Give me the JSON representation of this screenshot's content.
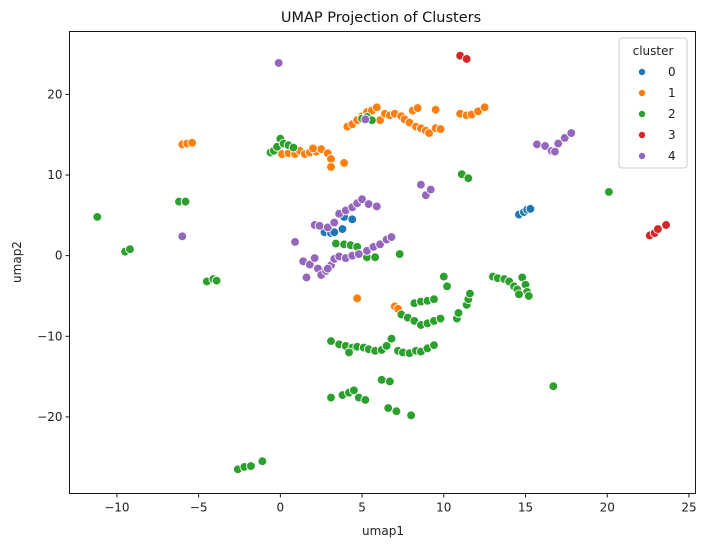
{
  "chart_data": {
    "type": "scatter",
    "title": "UMAP Projection of Clusters",
    "xlabel": "umap1",
    "ylabel": "umap2",
    "xlim": [
      -12.9,
      25.4
    ],
    "ylim": [
      -29.5,
      27.8
    ],
    "x_ticks": [
      -10,
      -5,
      0,
      5,
      10,
      15,
      20,
      25
    ],
    "y_ticks": [
      -20,
      -10,
      0,
      10,
      20
    ],
    "grid": false,
    "legend": {
      "title": "cluster",
      "placement": "top-right"
    },
    "series": [
      {
        "name": "0",
        "color": "#1f77b4",
        "points": [
          [
            2.7,
            2.9
          ],
          [
            3.1,
            2.8
          ],
          [
            3.3,
            2.9
          ],
          [
            3.8,
            3.3
          ],
          [
            3.9,
            4.8
          ],
          [
            4.4,
            4.5
          ],
          [
            14.6,
            5.1
          ],
          [
            14.9,
            5.4
          ],
          [
            15.1,
            5.7
          ],
          [
            15.3,
            5.8
          ],
          [
            8.3,
            -11.8
          ],
          [
            8.9,
            -11.6
          ]
        ]
      },
      {
        "name": "1",
        "color": "#ff7f0e",
        "points": [
          [
            -6.0,
            13.8
          ],
          [
            -5.7,
            13.9
          ],
          [
            -5.4,
            14.0
          ],
          [
            0.1,
            12.6
          ],
          [
            0.5,
            12.7
          ],
          [
            0.9,
            12.6
          ],
          [
            1.2,
            13.0
          ],
          [
            1.5,
            12.6
          ],
          [
            1.8,
            12.8
          ],
          [
            2.2,
            12.9
          ],
          [
            2.5,
            13.2
          ],
          [
            2.9,
            12.7
          ],
          [
            3.1,
            12.0
          ],
          [
            3.1,
            11.0
          ],
          [
            3.9,
            11.5
          ],
          [
            2.0,
            13.3
          ],
          [
            4.1,
            16.0
          ],
          [
            4.4,
            16.3
          ],
          [
            4.7,
            16.8
          ],
          [
            5.0,
            17.3
          ],
          [
            5.3,
            17.8
          ],
          [
            5.6,
            18.0
          ],
          [
            5.9,
            18.4
          ],
          [
            6.1,
            16.8
          ],
          [
            6.4,
            17.6
          ],
          [
            6.7,
            17.4
          ],
          [
            7.0,
            17.6
          ],
          [
            7.4,
            17.3
          ],
          [
            7.6,
            16.9
          ],
          [
            7.9,
            16.5
          ],
          [
            8.3,
            16.0
          ],
          [
            8.6,
            15.8
          ],
          [
            8.9,
            15.5
          ],
          [
            9.1,
            15.2
          ],
          [
            9.5,
            15.8
          ],
          [
            9.8,
            15.7
          ],
          [
            8.1,
            18.0
          ],
          [
            8.4,
            18.3
          ],
          [
            9.5,
            18.1
          ],
          [
            11.0,
            17.6
          ],
          [
            11.4,
            17.4
          ],
          [
            11.7,
            17.5
          ],
          [
            12.1,
            17.9
          ],
          [
            12.5,
            18.4
          ],
          [
            4.7,
            -5.3
          ],
          [
            7.0,
            -6.3
          ],
          [
            7.2,
            -6.6
          ]
        ]
      },
      {
        "name": "2",
        "color": "#2ca02c",
        "points": [
          [
            -11.2,
            4.8
          ],
          [
            -9.5,
            0.5
          ],
          [
            -9.2,
            0.8
          ],
          [
            -6.2,
            6.7
          ],
          [
            -5.8,
            6.7
          ],
          [
            -4.5,
            -3.2
          ],
          [
            -4.1,
            -2.9
          ],
          [
            -3.9,
            -3.1
          ],
          [
            -0.6,
            12.8
          ],
          [
            -0.4,
            13.0
          ],
          [
            -0.2,
            13.5
          ],
          [
            0.0,
            14.5
          ],
          [
            0.2,
            13.9
          ],
          [
            0.5,
            13.7
          ],
          [
            0.8,
            13.4
          ],
          [
            5.0,
            17.0
          ],
          [
            5.3,
            17.2
          ],
          [
            5.6,
            16.8
          ],
          [
            3.4,
            1.5
          ],
          [
            3.9,
            1.4
          ],
          [
            4.3,
            1.3
          ],
          [
            4.7,
            1.1
          ],
          [
            5.3,
            -0.2
          ],
          [
            5.8,
            -0.2
          ],
          [
            7.3,
            0.2
          ],
          [
            3.1,
            -10.6
          ],
          [
            3.6,
            -11.0
          ],
          [
            4.0,
            -11.2
          ],
          [
            4.4,
            -11.4
          ],
          [
            4.7,
            -11.3
          ],
          [
            5.1,
            -11.4
          ],
          [
            5.4,
            -11.6
          ],
          [
            5.8,
            -11.8
          ],
          [
            6.2,
            -11.7
          ],
          [
            6.5,
            -11.2
          ],
          [
            6.8,
            -10.3
          ],
          [
            7.2,
            -11.8
          ],
          [
            7.5,
            -12.0
          ],
          [
            7.9,
            -12.1
          ],
          [
            8.3,
            -11.8
          ],
          [
            8.6,
            -11.9
          ],
          [
            9.0,
            -11.5
          ],
          [
            9.4,
            -11.1
          ],
          [
            4.2,
            -12.0
          ],
          [
            7.4,
            -7.3
          ],
          [
            7.8,
            -7.7
          ],
          [
            8.2,
            -8.1
          ],
          [
            8.6,
            -8.6
          ],
          [
            9.0,
            -8.4
          ],
          [
            9.4,
            -8.1
          ],
          [
            9.8,
            -7.8
          ],
          [
            8.2,
            -5.9
          ],
          [
            8.6,
            -5.7
          ],
          [
            9.0,
            -5.6
          ],
          [
            9.4,
            -5.4
          ],
          [
            10.0,
            -2.6
          ],
          [
            10.2,
            -3.8
          ],
          [
            10.8,
            -7.8
          ],
          [
            10.9,
            -7.1
          ],
          [
            11.4,
            -6.1
          ],
          [
            11.5,
            -5.4
          ],
          [
            11.6,
            -4.7
          ],
          [
            11.1,
            10.1
          ],
          [
            11.5,
            9.6
          ],
          [
            13.0,
            -2.6
          ],
          [
            13.3,
            -2.8
          ],
          [
            13.7,
            -2.9
          ],
          [
            14.0,
            -3.2
          ],
          [
            14.3,
            -3.8
          ],
          [
            14.5,
            -4.2
          ],
          [
            14.8,
            -2.7
          ],
          [
            15.0,
            -3.6
          ],
          [
            15.1,
            -4.5
          ],
          [
            15.2,
            -5.0
          ],
          [
            14.6,
            -4.8
          ],
          [
            3.1,
            -17.6
          ],
          [
            3.8,
            -17.3
          ],
          [
            4.2,
            -17.0
          ],
          [
            4.5,
            -16.7
          ],
          [
            4.8,
            -17.6
          ],
          [
            5.2,
            -17.9
          ],
          [
            6.2,
            -15.4
          ],
          [
            6.7,
            -15.6
          ],
          [
            6.6,
            -18.9
          ],
          [
            7.1,
            -19.3
          ],
          [
            8.0,
            -19.8
          ],
          [
            16.7,
            -16.2
          ],
          [
            20.1,
            7.9
          ],
          [
            -2.6,
            -26.5
          ],
          [
            -2.2,
            -26.2
          ],
          [
            -1.8,
            -26.1
          ],
          [
            -1.1,
            -25.5
          ]
        ]
      },
      {
        "name": "3",
        "color": "#d62728",
        "points": [
          [
            11.0,
            24.8
          ],
          [
            11.4,
            24.4
          ],
          [
            22.6,
            2.5
          ],
          [
            22.9,
            2.8
          ],
          [
            23.1,
            3.3
          ],
          [
            23.6,
            3.8
          ]
        ]
      },
      {
        "name": "4",
        "color": "#9467bd",
        "points": [
          [
            -0.1,
            23.9
          ],
          [
            -6.0,
            2.4
          ],
          [
            0.9,
            1.7
          ],
          [
            1.4,
            -0.7
          ],
          [
            1.6,
            -2.7
          ],
          [
            1.8,
            -1.1
          ],
          [
            2.1,
            -0.3
          ],
          [
            2.3,
            -1.6
          ],
          [
            2.5,
            -2.4
          ],
          [
            2.8,
            -1.9
          ],
          [
            3.1,
            -1.2
          ],
          [
            3.3,
            -0.4
          ],
          [
            3.6,
            -0.1
          ],
          [
            4.0,
            -0.3
          ],
          [
            4.4,
            0.0
          ],
          [
            4.8,
            0.2
          ],
          [
            5.3,
            0.6
          ],
          [
            5.7,
            1.1
          ],
          [
            6.1,
            1.4
          ],
          [
            6.5,
            2.0
          ],
          [
            6.8,
            2.3
          ],
          [
            2.1,
            3.8
          ],
          [
            2.4,
            3.7
          ],
          [
            2.9,
            3.5
          ],
          [
            3.3,
            4.1
          ],
          [
            3.6,
            5.2
          ],
          [
            4.0,
            5.6
          ],
          [
            4.4,
            6.0
          ],
          [
            4.7,
            6.5
          ],
          [
            5.0,
            7.0
          ],
          [
            5.4,
            6.4
          ],
          [
            5.9,
            6.1
          ],
          [
            2.9,
            -1.6
          ],
          [
            5.2,
            16.9
          ],
          [
            8.6,
            8.8
          ],
          [
            8.9,
            7.5
          ],
          [
            9.2,
            8.2
          ],
          [
            15.7,
            13.8
          ],
          [
            16.2,
            13.6
          ],
          [
            16.6,
            13.0
          ],
          [
            17.0,
            13.9
          ],
          [
            17.4,
            14.6
          ],
          [
            17.8,
            15.2
          ],
          [
            16.8,
            12.9
          ]
        ]
      }
    ]
  }
}
